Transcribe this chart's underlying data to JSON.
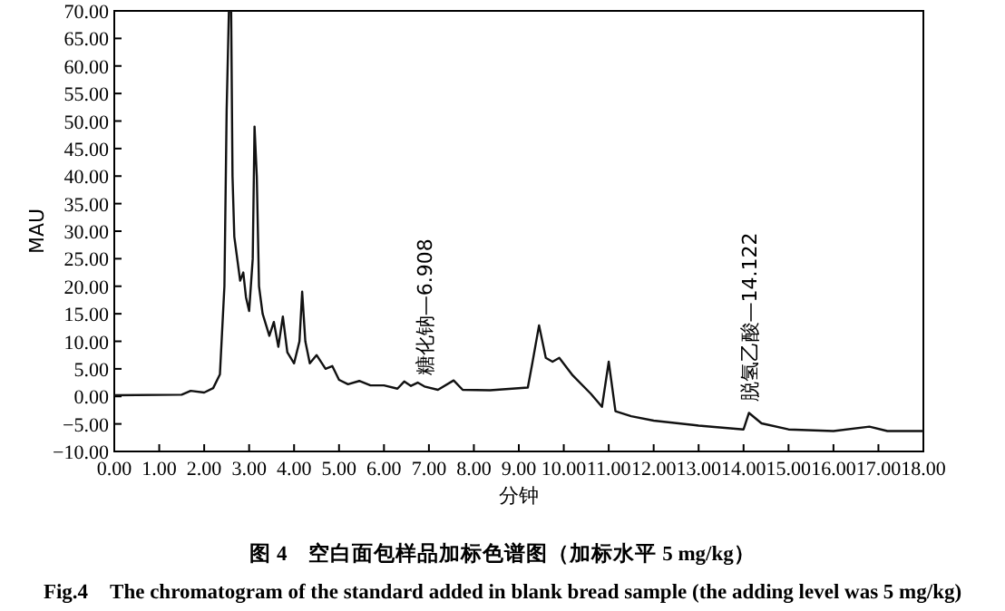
{
  "chart_data": {
    "type": "line",
    "title": "图 4　空白面包样品加标色谱图（加标水平 5 mg/kg）",
    "subtitle": "Fig.4　The chromatogram of the standard added in blank bread sample (the adding level was 5 mg/kg)",
    "xlabel": "分钟",
    "ylabel": "MAU",
    "xlim": [
      0,
      18
    ],
    "ylim": [
      -10,
      70
    ],
    "xticks": [
      {
        "value": 0,
        "label": "0.00"
      },
      {
        "value": 1,
        "label": "1.00"
      },
      {
        "value": 2,
        "label": "2.00"
      },
      {
        "value": 3,
        "label": "3.00"
      },
      {
        "value": 4,
        "label": "4.00"
      },
      {
        "value": 5,
        "label": "5.00"
      },
      {
        "value": 6,
        "label": "6.00"
      },
      {
        "value": 7,
        "label": "7.00"
      },
      {
        "value": 8,
        "label": "8.00"
      },
      {
        "value": 9,
        "label": "9.00"
      },
      {
        "value": 10,
        "label": "10.00"
      },
      {
        "value": 11,
        "label": "11.00"
      },
      {
        "value": 12,
        "label": "12.00"
      },
      {
        "value": 13,
        "label": "13.00"
      },
      {
        "value": 14,
        "label": "14.00"
      },
      {
        "value": 15,
        "label": "15.00"
      },
      {
        "value": 16,
        "label": "16.00"
      },
      {
        "value": 17,
        "label": "17.00"
      },
      {
        "value": 18,
        "label": "18.00"
      }
    ],
    "yticks": [
      {
        "value": -10,
        "label": "−10.00"
      },
      {
        "value": -5,
        "label": "−5.00"
      },
      {
        "value": 0,
        "label": "0.00"
      },
      {
        "value": 5,
        "label": "5.00"
      },
      {
        "value": 10,
        "label": "10.00"
      },
      {
        "value": 15,
        "label": "15.00"
      },
      {
        "value": 20,
        "label": "20.00"
      },
      {
        "value": 25,
        "label": "25.00"
      },
      {
        "value": 30,
        "label": "30.00"
      },
      {
        "value": 35,
        "label": "35.00"
      },
      {
        "value": 40,
        "label": "40.00"
      },
      {
        "value": 45,
        "label": "45.00"
      },
      {
        "value": 50,
        "label": "50.00"
      },
      {
        "value": 55,
        "label": "55.00"
      },
      {
        "value": 60,
        "label": "60.00"
      },
      {
        "value": 65,
        "label": "65.00"
      },
      {
        "value": 70,
        "label": "70.00"
      }
    ],
    "x": [
      0,
      1.5,
      1.7,
      2.0,
      2.2,
      2.35,
      2.45,
      2.5,
      2.55,
      2.6,
      2.63,
      2.67,
      2.8,
      2.87,
      2.93,
      3.0,
      3.08,
      3.12,
      3.17,
      3.22,
      3.3,
      3.45,
      3.55,
      3.65,
      3.75,
      3.85,
      4.0,
      4.12,
      4.18,
      4.25,
      4.35,
      4.5,
      4.7,
      4.85,
      5.0,
      5.2,
      5.45,
      5.7,
      6.0,
      6.3,
      6.45,
      6.6,
      6.75,
      6.9,
      7.2,
      7.55,
      7.75,
      8.36,
      9.2,
      9.3,
      9.45,
      9.6,
      9.75,
      9.9,
      10.2,
      10.6,
      10.85,
      11.0,
      11.15,
      11.5,
      12,
      13,
      14,
      14.12,
      14.4,
      15,
      16,
      16.8,
      17.2,
      18
    ],
    "series": [
      {
        "color": "#111111",
        "values": [
          0.2,
          0.3,
          1.0,
          0.7,
          1.5,
          4,
          20,
          52,
          70,
          70,
          40,
          29,
          21,
          22.5,
          18,
          15.5,
          25,
          49,
          40,
          20,
          15,
          11,
          13.5,
          9,
          14.5,
          8,
          6,
          10,
          19,
          10,
          6,
          7.5,
          5,
          5.5,
          3,
          2.2,
          2.8,
          2.0,
          2.0,
          1.4,
          2.7,
          1.9,
          2.5,
          1.8,
          1.2,
          2.9,
          1.2,
          1.1,
          1.6,
          6,
          12.9,
          7,
          6.3,
          7,
          3.8,
          0.5,
          -1.9,
          6.3,
          -2.7,
          -3.6,
          -4.4,
          -5.3,
          -6.0,
          -3.0,
          -4.9,
          -6.0,
          -6.3,
          -5.5,
          -6.3,
          -6.3
        ]
      }
    ],
    "annotations": [
      {
        "text": "糖化钠—6.908",
        "x": 6.908,
        "y": 1.8
      },
      {
        "text": "脱氢乙酸—14.122",
        "x": 14.122,
        "y": -3.0
      }
    ]
  }
}
